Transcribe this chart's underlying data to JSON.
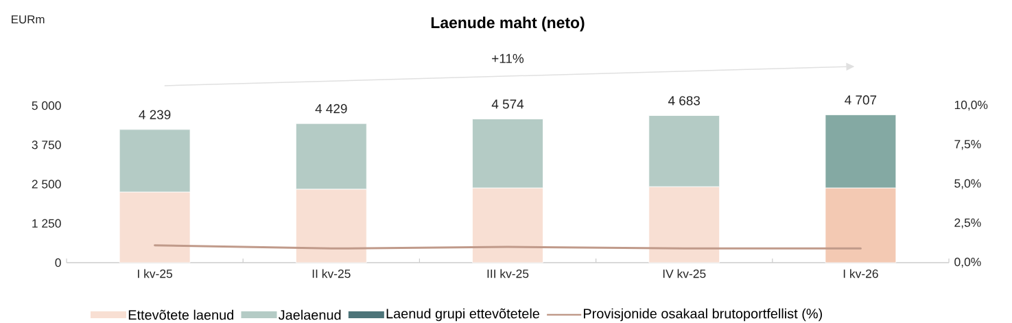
{
  "chart_data": {
    "type": "bar",
    "title": "Laenude maht (neto)",
    "categories": [
      "I kv-25",
      "II kv-25",
      "III kv-25",
      "IV kv-25",
      "I kv-26"
    ],
    "stacked": true,
    "series": [
      {
        "name": "Ettevõtete laenud",
        "color": "#f8dfd3",
        "colors": [
          "#f8dfd3",
          "#f8dfd3",
          "#f8dfd3",
          "#f8dfd3",
          "#f3c9b3"
        ],
        "values": [
          2250,
          2340,
          2380,
          2420,
          2380
        ]
      },
      {
        "name": "Jaelaenud",
        "color": "#b4cbc5",
        "colors": [
          "#b4cbc5",
          "#b4cbc5",
          "#b4cbc5",
          "#b4cbc5",
          "#84a9a3"
        ],
        "values": [
          1989,
          2089,
          2194,
          2263,
          2327
        ]
      },
      {
        "name": "Laenud grupi ettevõtetele",
        "color": "#4d7479",
        "values": [
          null,
          null,
          null,
          null,
          null
        ]
      },
      {
        "name": "Provisjonide osakaal brutoportfellist (%)",
        "type": "line",
        "axis": "y2",
        "color": "#c09a8a",
        "marker": "none",
        "values": [
          1.1,
          0.9,
          1.0,
          0.9,
          0.9
        ]
      }
    ],
    "totals": [
      "4 239",
      "4 429",
      "4 574",
      "4 683",
      "4 707"
    ],
    "ylim": [
      0,
      5000
    ],
    "yticks": [
      0,
      {
        "value": 1250,
        "label": "1 250"
      },
      {
        "value": 2500,
        "label": "2 500"
      },
      {
        "value": 3750,
        "label": "3 750"
      },
      {
        "value": 5000,
        "label": "5 000"
      }
    ],
    "y2lim": [
      0,
      10
    ],
    "y2ticks": [
      {
        "value": 0,
        "label": "0,0%"
      },
      {
        "value": 2.5,
        "label": "2,5%"
      },
      {
        "value": 5,
        "label": "5,0%"
      },
      {
        "value": 7.5,
        "label": "7,5%"
      },
      {
        "value": 10,
        "label": "10,0%"
      }
    ],
    "annotations": [
      "+11%",
      "EURm"
    ],
    "grid": false,
    "legend": "bottom"
  }
}
